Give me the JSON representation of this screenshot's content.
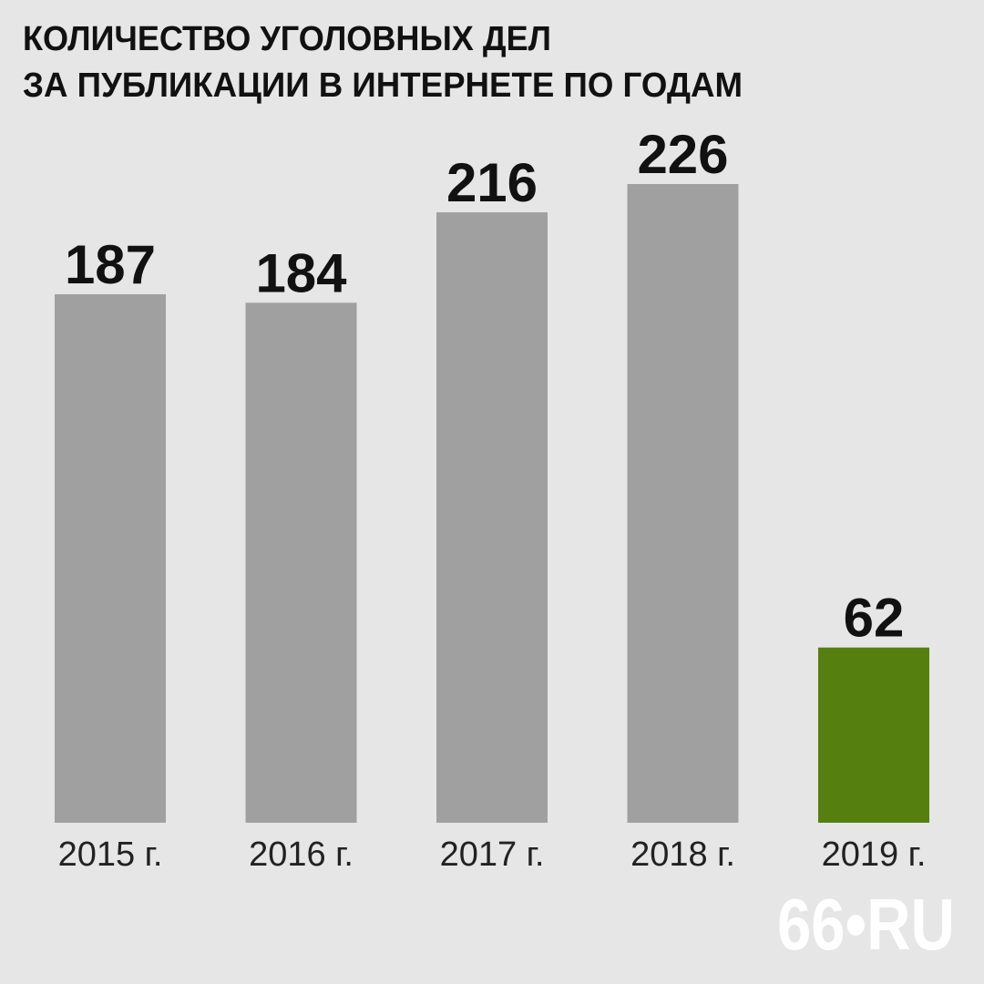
{
  "chart_data": {
    "type": "bar",
    "title": [
      "КОЛИЧЕСТВО УГОЛОВНЫХ ДЕЛ",
      "ЗА ПУБЛИКАЦИИ В ИНТЕРНЕТЕ ПО ГОДАМ"
    ],
    "categories": [
      "2015 г.",
      "2016 г.",
      "2017 г.",
      "2018 г.",
      "2019 г."
    ],
    "values": [
      187,
      184,
      216,
      226,
      62
    ],
    "colors": [
      "#a0a0a0",
      "#a0a0a0",
      "#a0a0a0",
      "#a0a0a0",
      "#55800f"
    ],
    "watermark": "66•RU"
  }
}
